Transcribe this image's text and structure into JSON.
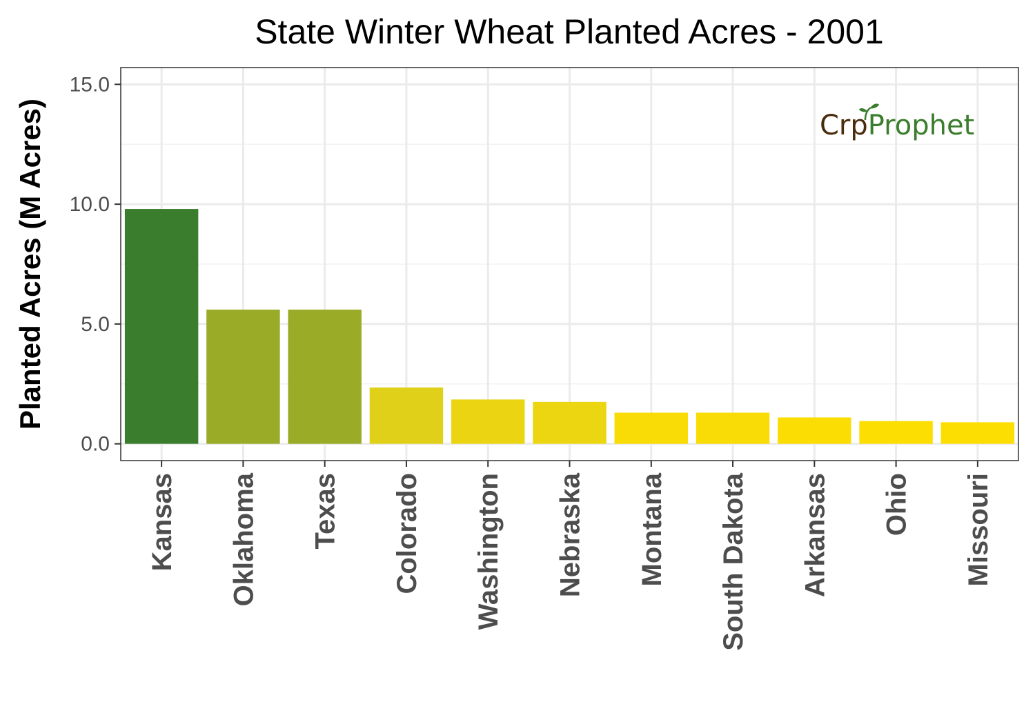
{
  "chart_data": {
    "type": "bar",
    "title": "State Winter Wheat Planted Acres - 2001",
    "xlabel": "",
    "ylabel": "Planted Acres (M Acres)",
    "ylim": [
      -0.7,
      15.7
    ],
    "y_ticks": [
      0,
      5,
      10,
      15
    ],
    "y_tick_labels": [
      "0.0",
      "5.0",
      "10.0",
      "15.0"
    ],
    "grid": true,
    "legend": "none",
    "categories": [
      "Kansas",
      "Oklahoma",
      "Texas",
      "Colorado",
      "Washington",
      "Nebraska",
      "Montana",
      "South Dakota",
      "Arkansas",
      "Ohio",
      "Missouri"
    ],
    "values": [
      9.8,
      5.6,
      5.6,
      2.35,
      1.85,
      1.75,
      1.3,
      1.3,
      1.1,
      0.95,
      0.9
    ],
    "colors": [
      "#3a7d2c",
      "#9aab28",
      "#9aab28",
      "#e0d019",
      "#ebd513",
      "#ecd612",
      "#f9dc06",
      "#f9dc06",
      "#fbdd04",
      "#fcde03",
      "#fcde03"
    ]
  },
  "logo": {
    "part1": "Cr",
    "part2": "p",
    "part3": "Prophet",
    "color_dark": "#4a2c0c",
    "color_green": "#3a7d2c",
    "icon": "sprout-icon"
  }
}
